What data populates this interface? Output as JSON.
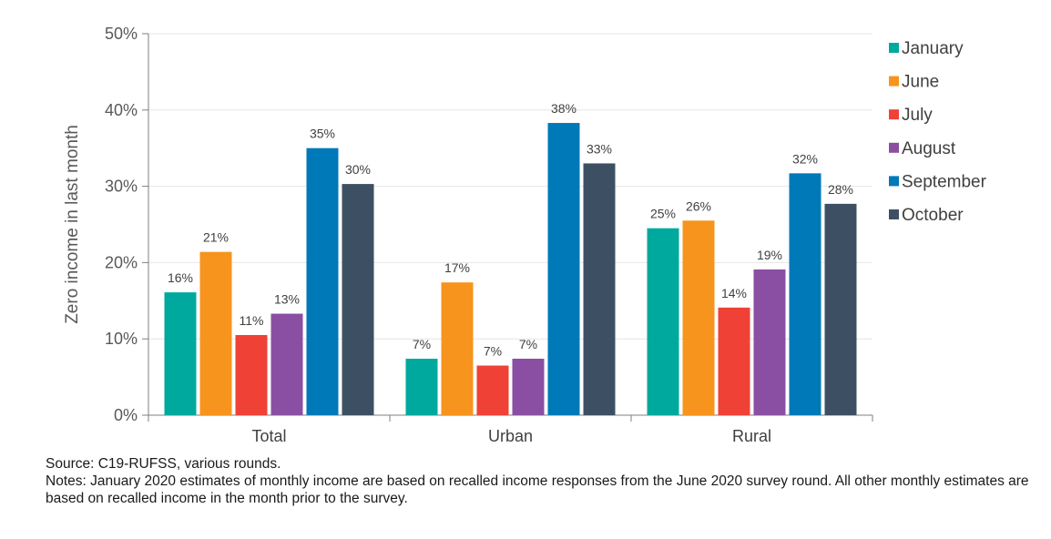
{
  "chart_data": {
    "type": "bar",
    "title": "",
    "xlabel": "",
    "ylabel": "Zero income in last month",
    "ylim": [
      0,
      50
    ],
    "ytick_values": [
      0,
      10,
      20,
      30,
      40,
      50
    ],
    "ytick_labels": [
      "0%",
      "10%",
      "20%",
      "30%",
      "40%",
      "50%"
    ],
    "categories": [
      "Total",
      "Urban",
      "Rural"
    ],
    "legend_position": "right",
    "series": [
      {
        "name": "January",
        "color": "#00a99d",
        "values": [
          16.1,
          7.4,
          24.5
        ],
        "labels": [
          "16%",
          "7%",
          "25%"
        ]
      },
      {
        "name": "June",
        "color": "#f7941d",
        "values": [
          21.4,
          17.4,
          25.5
        ],
        "labels": [
          "21%",
          "17%",
          "26%"
        ]
      },
      {
        "name": "July",
        "color": "#ef4136",
        "values": [
          10.5,
          6.5,
          14.1
        ],
        "labels": [
          "11%",
          "7%",
          "14%"
        ]
      },
      {
        "name": "August",
        "color": "#8a4fa3",
        "values": [
          13.3,
          7.4,
          19.1
        ],
        "labels": [
          "13%",
          "7%",
          "19%"
        ]
      },
      {
        "name": "September",
        "color": "#0079b8",
        "values": [
          35.0,
          38.3,
          31.7
        ],
        "labels": [
          "35%",
          "38%",
          "32%"
        ]
      },
      {
        "name": "October",
        "color": "#3d5063",
        "values": [
          30.3,
          33.0,
          27.7
        ],
        "labels": [
          "30%",
          "33%",
          "28%"
        ]
      }
    ]
  },
  "notes": {
    "source": "Source: C19-RUFSS, various rounds.",
    "notes": "Notes: January 2020 estimates of monthly income are based on recalled income responses from the June 2020 survey round. All other monthly estimates are based on recalled income in the month prior to the survey."
  }
}
